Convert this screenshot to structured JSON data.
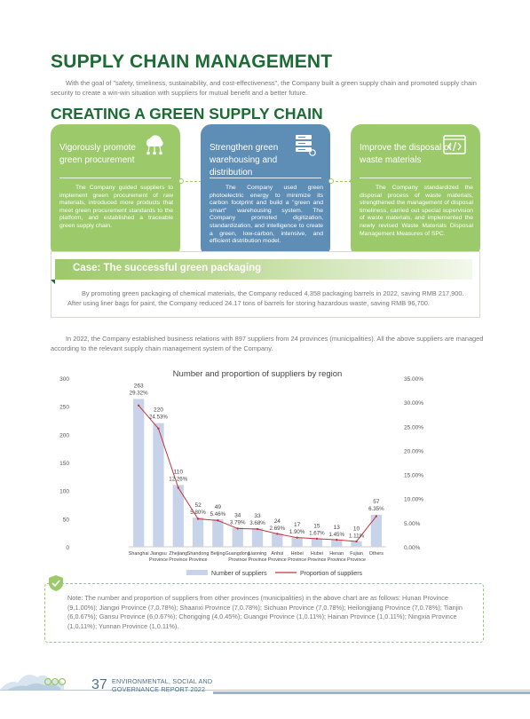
{
  "page": {
    "title": "SUPPLY CHAIN MANAGEMENT",
    "intro": "With the goal of \"safety, timeliness, sustainability, and cost-effectiveness\", the Company built a green supply chain and promoted supply chain security to create a win-win situation with suppliers for mutual benefit and a better future.",
    "section_title": "CREATING A GREEN SUPPLY CHAIN"
  },
  "cards": [
    {
      "title": "Vigorously promote green procurement",
      "icon": "cloud-network-icon",
      "color": "#9cc96a",
      "body": "The Company guided suppliers to implement green procurement of raw materials, introduced more products that meet green procurement standards to the platform, and established a traceable green supply chain."
    },
    {
      "title": "Strengthen green warehousing and distribution",
      "icon": "server-stack-icon",
      "color": "#5e8db5",
      "body": "The Company used green photoelectric energy to minimize its carbon footprint and build a \"green and smart\" warehousing system. The Company promoted digitization, standardization, and intelligence to create a green, low-carbon, intensive, and efficient distribution model."
    },
    {
      "title": "Improve the disposal of waste materials",
      "icon": "code-window-icon",
      "color": "#9cc96a",
      "body": "The Company standardized the disposal process of waste materials, strengthened the management of disposal timeliness, carried out special supervision of waste materials, and implemented the newly revised Waste Materials Disposal Management Measures of SPC."
    }
  ],
  "case": {
    "title": "Case: The successful green packaging",
    "text": "By promoting green packaging of chemical materials, the Company reduced 4,358 packaging barrels in 2022, saving RMB 217,900. After using liner bags for paint, the Company reduced 24.17 tons of barrels for storing hazardous waste, saving RMB 96,700."
  },
  "paragraph": "In 2022, the Company established business relations with 897 suppliers from 24 provinces (municipalities). All the above suppliers are managed according to the relevant supply chain management system of the Company.",
  "chart_data": {
    "type": "bar",
    "title": "Number and proportion of suppliers by region",
    "categories": [
      [
        "Shanghai"
      ],
      [
        "Jiangsu",
        "Province"
      ],
      [
        "Zhejiang",
        "Province"
      ],
      [
        "Shandong",
        "Province"
      ],
      [
        "Beijing"
      ],
      [
        "Guangdong",
        "Province"
      ],
      [
        "Liaoning",
        "Province"
      ],
      [
        "Anhui",
        "Province"
      ],
      [
        "Hebei",
        "Province"
      ],
      [
        "Hubei",
        "Province"
      ],
      [
        "Henan",
        "Province"
      ],
      [
        "Fujian",
        "Province"
      ],
      [
        "Others"
      ]
    ],
    "series": [
      {
        "name": "Number of suppliers",
        "type": "bar",
        "color": "#c6d3e8",
        "values": [
          263,
          220,
          110,
          52,
          49,
          34,
          33,
          24,
          17,
          15,
          13,
          10,
          57
        ]
      },
      {
        "name": "Proportion of suppliers",
        "type": "line",
        "color": "#c8323c",
        "values": [
          29.32,
          24.53,
          12.26,
          5.8,
          5.46,
          3.79,
          3.68,
          2.69,
          1.9,
          1.67,
          1.45,
          1.11,
          6.35
        ],
        "labels": [
          "29.32%",
          "24.53%",
          "12.26%",
          "5.80%",
          "5.46%",
          "3.79%",
          "3.68%",
          "2.69%",
          "1.90%",
          "1.67%",
          "1.45%",
          "1.11%",
          "6.35%"
        ]
      }
    ],
    "ylim_left": [
      0,
      300
    ],
    "yticks_left": [
      "0",
      "50",
      "100",
      "150",
      "200",
      "250",
      "300"
    ],
    "ylim_right": [
      0,
      35
    ],
    "yticks_right": [
      "0.00%",
      "5.00%",
      "10.00%",
      "15.00%",
      "20.00%",
      "25.00%",
      "30.00%",
      "35.00%"
    ],
    "grid": false,
    "legend": "bottom"
  },
  "note": "Note: The number and proportion of suppliers from other provinces (municipalities) in the above chart are as follows: Hunan Province (9,1.00%); Jiangxi Province (7,0.78%); Shaanxi Province (7,0.78%); Sichuan Province (7,0.78%); Heilongjiang Province (7,0.78%); Tianjin (6,0.67%); Gansu Province (6,0.67%); Chongqing (4,0.45%); Guangxi Province (1,0.11%); Hainan Province (1,0.11%); Ningxia Province (1,0.11%); Yunnan Province (1,0.11%).",
  "footer": {
    "page_number": "37",
    "report_line1": "ENVIRONMENTAL, SOCIAL AND",
    "report_line2": "GOVERNANCE REPORT 2022"
  }
}
